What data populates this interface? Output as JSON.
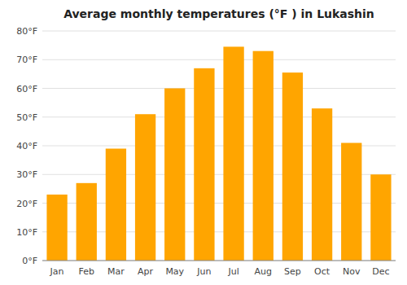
{
  "chart_data": {
    "type": "bar",
    "title": "Average monthly temperatures (°F ) in Lukashin",
    "categories": [
      "Jan",
      "Feb",
      "Mar",
      "Apr",
      "May",
      "Jun",
      "Jul",
      "Aug",
      "Sep",
      "Oct",
      "Nov",
      "Dec"
    ],
    "values": [
      23,
      27,
      39,
      51,
      60,
      67,
      74.5,
      73,
      65.5,
      53,
      41,
      30
    ],
    "color": "#FFA500",
    "ylim": [
      0,
      80
    ],
    "yticks": [
      {
        "value": 0,
        "label": "0°F"
      },
      {
        "value": 10,
        "label": "10°F"
      },
      {
        "value": 20,
        "label": "20°F"
      },
      {
        "value": 30,
        "label": "30°F"
      },
      {
        "value": 40,
        "label": "40°F"
      },
      {
        "value": 50,
        "label": "50°F"
      },
      {
        "value": 60,
        "label": "60°F"
      },
      {
        "value": 70,
        "label": "70°F"
      },
      {
        "value": 80,
        "label": "80°F"
      }
    ],
    "grid": true
  }
}
